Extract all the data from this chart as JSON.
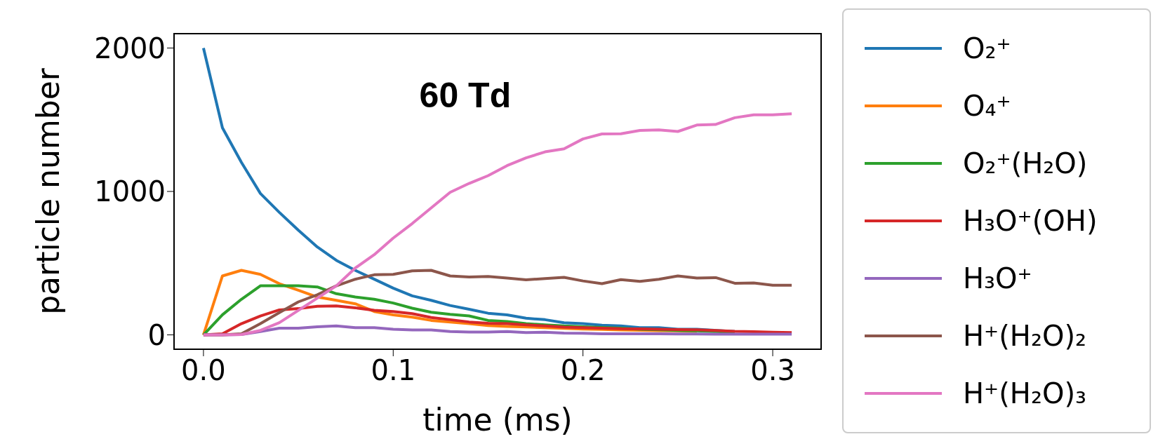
{
  "chart_data": {
    "type": "line",
    "title": "60 Td",
    "xlabel": "time (ms)",
    "ylabel": "particle number",
    "x": [
      0,
      0.01,
      0.02,
      0.03,
      0.04,
      0.05,
      0.06,
      0.07,
      0.08,
      0.09,
      0.1,
      0.11,
      0.12,
      0.13,
      0.14,
      0.15,
      0.16,
      0.17,
      0.18,
      0.19,
      0.2,
      0.21,
      0.22,
      0.23,
      0.24,
      0.25,
      0.26,
      0.27,
      0.28,
      0.29,
      0.3,
      0.31
    ],
    "series": [
      {
        "name": "O₂⁺",
        "color": "#1f77b4",
        "values": [
          2000,
          1444,
          1203,
          986,
          854,
          730,
          613,
          520,
          450,
          388,
          326,
          272,
          241,
          205,
          179,
          151,
          140,
          116,
          106,
          85,
          78,
          67,
          62,
          50,
          50,
          39,
          39,
          31,
          23,
          null,
          null,
          null
        ]
      },
      {
        "name": "O₄⁺",
        "color": "#ff7f0e",
        "values": [
          0,
          411,
          450,
          422,
          357,
          311,
          264,
          241,
          217,
          163,
          140,
          124,
          101,
          90,
          78,
          65,
          59,
          55,
          50,
          45,
          40,
          38,
          35,
          32,
          30,
          28,
          25,
          null,
          null,
          null,
          null,
          null
        ]
      },
      {
        "name": "O₂⁺(H₂O)",
        "color": "#2ca02c",
        "values": [
          0,
          140,
          248,
          342,
          342,
          342,
          334,
          287,
          264,
          248,
          222,
          186,
          158,
          143,
          132,
          101,
          93,
          78,
          70,
          62,
          57,
          51,
          47,
          39,
          36,
          31,
          28,
          23,
          19,
          null,
          null,
          null
        ]
      },
      {
        "name": "H₃O⁺(OH)",
        "color": "#d62728",
        "values": [
          0,
          8,
          78,
          132,
          174,
          183,
          199,
          202,
          189,
          171,
          163,
          148,
          121,
          106,
          90,
          81,
          78,
          70,
          62,
          54,
          50,
          47,
          43,
          42,
          39,
          37,
          36,
          31,
          25,
          22,
          19,
          16
        ]
      },
      {
        "name": "H₃O⁺",
        "color": "#9467bd",
        "values": [
          0,
          0,
          3,
          23,
          47,
          47,
          57,
          62,
          50,
          50,
          39,
          34,
          34,
          23,
          20,
          20,
          23,
          16,
          19,
          12,
          11,
          8,
          8,
          7,
          7,
          6,
          6,
          5,
          5,
          5,
          5,
          5
        ]
      },
      {
        "name": "H⁺(H₂O)₂",
        "color": "#8c564b",
        "values": [
          0,
          0,
          8,
          78,
          155,
          230,
          280,
          342,
          388,
          419,
          422,
          446,
          450,
          411,
          404,
          407,
          396,
          384,
          393,
          401,
          376,
          357,
          385,
          373,
          388,
          411,
          396,
          399,
          360,
          362,
          346,
          346
        ]
      },
      {
        "name": "H⁺(H₂O)₃",
        "color": "#e377c2",
        "values": [
          0,
          0,
          3,
          31,
          85,
          171,
          256,
          342,
          466,
          559,
          675,
          776,
          885,
          994,
          1056,
          1110,
          1180,
          1234,
          1276,
          1297,
          1366,
          1401,
          1402,
          1425,
          1429,
          1418,
          1463,
          1467,
          1514,
          1534,
          1534,
          1542
        ]
      }
    ],
    "xlim": [
      -0.0155,
      0.3255
    ],
    "ylim": [
      -100,
      2100
    ],
    "xticks": [
      {
        "value": 0,
        "label": "0.0"
      },
      {
        "value": 0.1,
        "label": "0.1"
      },
      {
        "value": 0.2,
        "label": "0.2"
      },
      {
        "value": 0.3,
        "label": "0.3"
      }
    ],
    "yticks": [
      0,
      1000,
      2000
    ],
    "grid": false,
    "legend": "right",
    "marker": "none",
    "line_style": "solid"
  }
}
